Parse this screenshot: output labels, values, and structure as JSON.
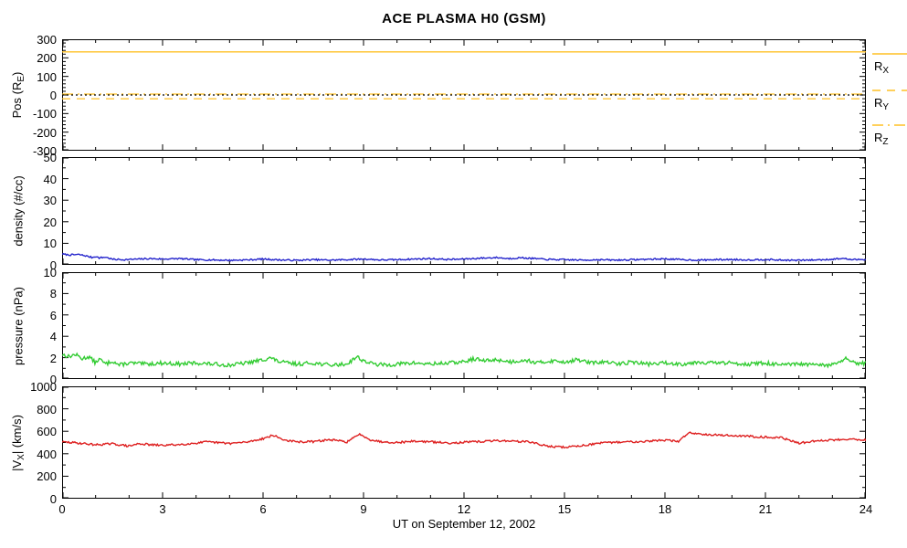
{
  "title": "ACE PLASMA H0 (GSM)",
  "xlabel": "UT on September 12, 2002",
  "x_range": [
    0,
    24
  ],
  "x_ticks": [
    0,
    3,
    6,
    9,
    12,
    15,
    18,
    21,
    24
  ],
  "x_minor": 1,
  "colors": {
    "orange": "#FFC125",
    "blue": "#2323CC",
    "green": "#33CC33",
    "red": "#DE2020",
    "axis": "#000000",
    "background": "#FFFFFF"
  },
  "chart_data": [
    {
      "type": "line",
      "name": "position",
      "ylabel_parts": [
        {
          "t": "Pos (R"
        },
        {
          "t": "E",
          "sub": true
        },
        {
          "t": ")"
        }
      ],
      "ylim": [
        -300,
        300
      ],
      "yticks": [
        300,
        200,
        100,
        0,
        -100,
        -200,
        -300
      ],
      "y_minor": 20,
      "legend_position": "right",
      "series": [
        {
          "name": "R_X",
          "label_parts": [
            {
              "t": "R"
            },
            {
              "t": "X",
              "sub": true
            }
          ],
          "style": "solid",
          "color": "#FFC125",
          "legend": true,
          "noise": 0,
          "points": [
            [
              0,
              232
            ],
            [
              24,
              232
            ]
          ]
        },
        {
          "name": "R_Y",
          "label_parts": [
            {
              "t": "R"
            },
            {
              "t": "Y",
              "sub": true
            }
          ],
          "style": "dashed",
          "color": "#FFC125",
          "legend": true,
          "noise": 0,
          "points": [
            [
              0,
              -20
            ],
            [
              24,
              -20
            ]
          ]
        },
        {
          "name": "R_Z",
          "label_parts": [
            {
              "t": "R"
            },
            {
              "t": "Z",
              "sub": true
            }
          ],
          "style": "dashdot",
          "color": "#FFC125",
          "legend": true,
          "noise": 0,
          "points": [
            [
              0,
              5
            ],
            [
              24,
              5
            ]
          ]
        },
        {
          "name": "zero-line",
          "label_parts": [],
          "style": "dotted",
          "color": "#000000",
          "legend": false,
          "noise": 0,
          "points": [
            [
              0,
              0
            ],
            [
              24,
              0
            ]
          ]
        }
      ]
    },
    {
      "type": "line",
      "name": "density",
      "ylabel_parts": [
        {
          "t": "density (#/cc)"
        }
      ],
      "ylim": [
        0,
        50
      ],
      "yticks": [
        50,
        40,
        30,
        20,
        10,
        0
      ],
      "y_minor": 5,
      "series": [
        {
          "name": "density-trace",
          "style": "solid",
          "color": "#2323CC",
          "legend": false,
          "noise": 0.35,
          "seed": 7,
          "points": [
            [
              0,
              5.0
            ],
            [
              0.2,
              4.6
            ],
            [
              0.5,
              4.8
            ],
            [
              0.7,
              4.2
            ],
            [
              0.9,
              3.4
            ],
            [
              1.0,
              4.0
            ],
            [
              1.1,
              3.2
            ],
            [
              1.3,
              3.6
            ],
            [
              1.5,
              2.6
            ],
            [
              1.8,
              2.4
            ],
            [
              2.2,
              2.6
            ],
            [
              2.6,
              2.9
            ],
            [
              3.0,
              2.7
            ],
            [
              3.5,
              2.9
            ],
            [
              4.0,
              2.4
            ],
            [
              4.5,
              2.3
            ],
            [
              5.0,
              2.1
            ],
            [
              5.5,
              2.3
            ],
            [
              6.0,
              2.7
            ],
            [
              6.5,
              2.3
            ],
            [
              7.0,
              2.1
            ],
            [
              7.5,
              2.4
            ],
            [
              8.0,
              2.2
            ],
            [
              8.5,
              2.4
            ],
            [
              9.0,
              2.7
            ],
            [
              9.5,
              2.3
            ],
            [
              10.0,
              2.4
            ],
            [
              10.5,
              2.7
            ],
            [
              11.0,
              2.9
            ],
            [
              11.5,
              2.5
            ],
            [
              12.0,
              2.7
            ],
            [
              12.5,
              3.1
            ],
            [
              13.0,
              3.4
            ],
            [
              13.3,
              2.9
            ],
            [
              13.7,
              3.3
            ],
            [
              14.0,
              3.0
            ],
            [
              14.5,
              2.5
            ],
            [
              15.0,
              2.4
            ],
            [
              15.5,
              2.2
            ],
            [
              16.0,
              2.4
            ],
            [
              16.5,
              2.2
            ],
            [
              17.0,
              2.4
            ],
            [
              17.5,
              2.6
            ],
            [
              18.0,
              2.8
            ],
            [
              18.5,
              2.4
            ],
            [
              19.0,
              2.2
            ],
            [
              19.5,
              2.4
            ],
            [
              20.0,
              2.5
            ],
            [
              20.5,
              2.3
            ],
            [
              21.0,
              2.5
            ],
            [
              21.5,
              2.2
            ],
            [
              22.0,
              2.1
            ],
            [
              22.5,
              2.3
            ],
            [
              23.0,
              2.6
            ],
            [
              23.3,
              3.0
            ],
            [
              23.6,
              2.4
            ],
            [
              24,
              2.6
            ]
          ]
        }
      ]
    },
    {
      "type": "line",
      "name": "pressure",
      "ylabel_parts": [
        {
          "t": "pressure (nPa)"
        }
      ],
      "ylim": [
        0,
        10
      ],
      "yticks": [
        10,
        8,
        6,
        4,
        2,
        0
      ],
      "y_minor": 1,
      "series": [
        {
          "name": "pressure-trace",
          "style": "solid",
          "color": "#33CC33",
          "legend": false,
          "noise": 0.18,
          "seed": 13,
          "points": [
            [
              0,
              2.3
            ],
            [
              0.2,
              2.1
            ],
            [
              0.4,
              2.3
            ],
            [
              0.6,
              1.9
            ],
            [
              0.8,
              2.1
            ],
            [
              1.0,
              1.5
            ],
            [
              1.1,
              1.9
            ],
            [
              1.3,
              1.4
            ],
            [
              1.5,
              1.7
            ],
            [
              1.7,
              1.3
            ],
            [
              2.0,
              1.5
            ],
            [
              2.5,
              1.4
            ],
            [
              3.0,
              1.5
            ],
            [
              3.5,
              1.4
            ],
            [
              4.0,
              1.5
            ],
            [
              4.5,
              1.4
            ],
            [
              5.0,
              1.3
            ],
            [
              5.5,
              1.5
            ],
            [
              6.0,
              1.8
            ],
            [
              6.2,
              2.0
            ],
            [
              6.5,
              1.6
            ],
            [
              7.0,
              1.4
            ],
            [
              7.5,
              1.5
            ],
            [
              8.0,
              1.3
            ],
            [
              8.5,
              1.4
            ],
            [
              8.8,
              2.1
            ],
            [
              9.0,
              1.7
            ],
            [
              9.3,
              1.4
            ],
            [
              9.7,
              1.3
            ],
            [
              10.0,
              1.4
            ],
            [
              10.5,
              1.5
            ],
            [
              11.0,
              1.4
            ],
            [
              11.5,
              1.5
            ],
            [
              12.0,
              1.6
            ],
            [
              12.3,
              1.9
            ],
            [
              12.6,
              1.7
            ],
            [
              13.0,
              1.8
            ],
            [
              13.4,
              1.6
            ],
            [
              13.8,
              1.8
            ],
            [
              14.2,
              1.5
            ],
            [
              14.6,
              1.7
            ],
            [
              15.0,
              1.6
            ],
            [
              15.4,
              1.8
            ],
            [
              15.8,
              1.5
            ],
            [
              16.2,
              1.6
            ],
            [
              16.6,
              1.4
            ],
            [
              17.0,
              1.6
            ],
            [
              17.5,
              1.4
            ],
            [
              18.0,
              1.5
            ],
            [
              18.5,
              1.4
            ],
            [
              19.0,
              1.6
            ],
            [
              19.5,
              1.5
            ],
            [
              20.0,
              1.5
            ],
            [
              20.5,
              1.4
            ],
            [
              21.0,
              1.5
            ],
            [
              21.5,
              1.3
            ],
            [
              22.0,
              1.4
            ],
            [
              22.5,
              1.3
            ],
            [
              23.0,
              1.3
            ],
            [
              23.4,
              1.9
            ],
            [
              23.7,
              1.4
            ],
            [
              24,
              1.5
            ]
          ]
        }
      ]
    },
    {
      "type": "line",
      "name": "velocity",
      "ylabel_parts": [
        {
          "t": "|V"
        },
        {
          "t": "X",
          "sub": true
        },
        {
          "t": "| (km/s)"
        }
      ],
      "ylim": [
        0,
        1000
      ],
      "yticks": [
        1000,
        800,
        600,
        400,
        200,
        0
      ],
      "y_minor": 100,
      "series": [
        {
          "name": "vx-trace",
          "style": "solid",
          "color": "#DE2020",
          "legend": false,
          "noise": 9,
          "seed": 29,
          "points": [
            [
              0,
              505
            ],
            [
              0.5,
              495
            ],
            [
              1.0,
              480
            ],
            [
              1.5,
              488
            ],
            [
              2.0,
              468
            ],
            [
              2.3,
              490
            ],
            [
              2.7,
              478
            ],
            [
              3.0,
              475
            ],
            [
              3.5,
              482
            ],
            [
              4.0,
              495
            ],
            [
              4.3,
              505
            ],
            [
              4.7,
              498
            ],
            [
              5.0,
              492
            ],
            [
              5.5,
              503
            ],
            [
              6.0,
              535
            ],
            [
              6.3,
              565
            ],
            [
              6.6,
              525
            ],
            [
              7.0,
              505
            ],
            [
              7.5,
              508
            ],
            [
              8.0,
              525
            ],
            [
              8.5,
              505
            ],
            [
              8.9,
              575
            ],
            [
              9.2,
              525
            ],
            [
              9.5,
              508
            ],
            [
              10.0,
              500
            ],
            [
              10.5,
              512
            ],
            [
              11.0,
              506
            ],
            [
              11.5,
              496
            ],
            [
              12.0,
              502
            ],
            [
              12.5,
              508
            ],
            [
              13.0,
              517
            ],
            [
              13.5,
              512
            ],
            [
              14.0,
              505
            ],
            [
              14.3,
              478
            ],
            [
              14.7,
              462
            ],
            [
              15.0,
              458
            ],
            [
              15.5,
              472
            ],
            [
              16.0,
              492
            ],
            [
              16.5,
              502
            ],
            [
              17.0,
              507
            ],
            [
              17.5,
              512
            ],
            [
              18.0,
              522
            ],
            [
              18.4,
              508
            ],
            [
              18.7,
              588
            ],
            [
              19.0,
              578
            ],
            [
              19.5,
              568
            ],
            [
              20.0,
              562
            ],
            [
              20.5,
              556
            ],
            [
              21.0,
              548
            ],
            [
              21.5,
              542
            ],
            [
              22.0,
              492
            ],
            [
              22.3,
              508
            ],
            [
              22.7,
              518
            ],
            [
              23.0,
              522
            ],
            [
              23.5,
              532
            ],
            [
              24,
              522
            ]
          ]
        }
      ]
    }
  ]
}
